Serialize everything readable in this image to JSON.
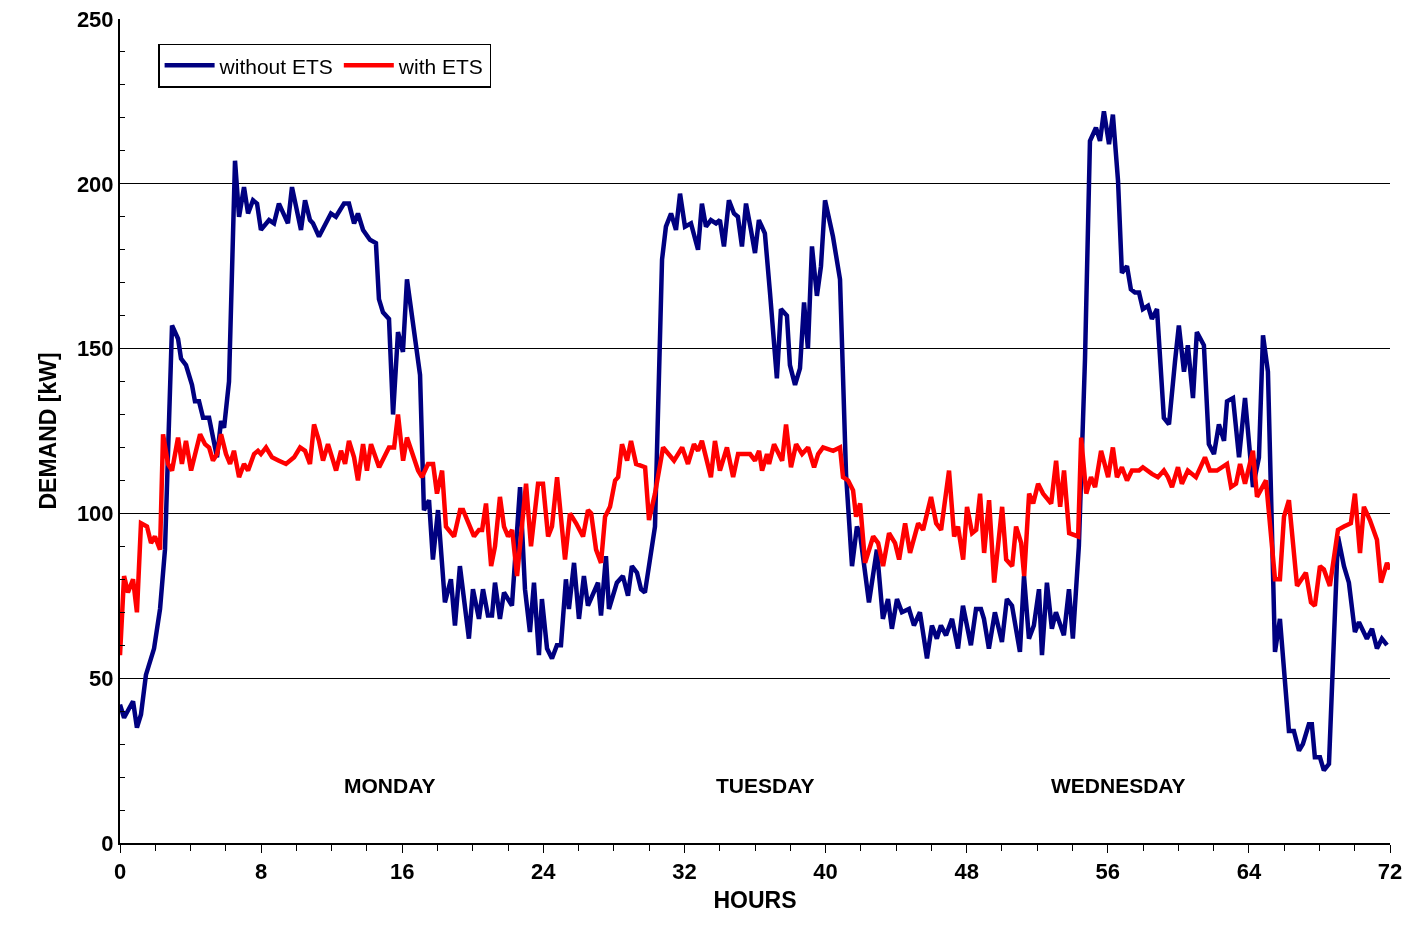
{
  "chart_data": {
    "type": "line",
    "xlabel": "HOURS",
    "ylabel": "DEMAND [kW]",
    "xlim": [
      0,
      72
    ],
    "xticks": [
      0,
      8,
      16,
      24,
      32,
      40,
      48,
      56,
      64,
      72
    ],
    "ylim": [
      0,
      250
    ],
    "yticks": [
      0,
      50,
      100,
      150,
      200,
      250
    ],
    "grid": "y",
    "legend": "top left",
    "marker": "none",
    "line_style": "solid",
    "annotations": [
      "MONDAY",
      "TUESDAY",
      "WEDNESDAY"
    ],
    "series": [
      {
        "name": "without ETS",
        "color": "#000080",
        "x": [
          0,
          0.23,
          0.74,
          0.96,
          1.19,
          1.47,
          1.93,
          2.27,
          2.55,
          2.95,
          3.29,
          3.46,
          3.74,
          4.08,
          4.25,
          4.48,
          4.71,
          5.05,
          5.5,
          5.73,
          5.9,
          6.18,
          6.52,
          6.75,
          7.03,
          7.26,
          7.54,
          7.77,
          7.99,
          8.45,
          8.73,
          9.01,
          9.52,
          9.75,
          10.26,
          10.49,
          10.77,
          10.94,
          11.28,
          11.96,
          12.24,
          12.7,
          12.98,
          13.27,
          13.49,
          13.78,
          14.17,
          14.51,
          14.68,
          14.91,
          15.25,
          15.48,
          15.76,
          16.04,
          16.27,
          17.01,
          17.23,
          17.52,
          17.74,
          18.03,
          18.42,
          18.76,
          18.99,
          19.27,
          19.78,
          20.01,
          20.35,
          20.58,
          20.86,
          21.09,
          21.26,
          21.54,
          21.77,
          22.22,
          22.68,
          22.96,
          23.24,
          23.47,
          23.75,
          23.92,
          24.21,
          24.49,
          24.77,
          25,
          25.28,
          25.45,
          25.74,
          26.02,
          26.3,
          26.53,
          27.1,
          27.27,
          27.55,
          27.72,
          28.17,
          28.51,
          28.8,
          29.02,
          29.31,
          29.54,
          29.76,
          30.33,
          30.73,
          30.95,
          31.24,
          31.52,
          31.75,
          32.03,
          32.37,
          32.77,
          32.99,
          33.22,
          33.5,
          33.79,
          34.01,
          34.24,
          34.52,
          34.81,
          35.03,
          35.26,
          35.49,
          35.77,
          36,
          36.22,
          36.56,
          36.85,
          37.24,
          37.47,
          37.81,
          37.98,
          38.27,
          38.55,
          38.78,
          39,
          39.23,
          39.51,
          39.74,
          39.97,
          40.42,
          40.82,
          41.16,
          41.5,
          41.78,
          41.95,
          42.46,
          42.91,
          43.25,
          43.54,
          43.76,
          44.05,
          44.33,
          44.73,
          45.01,
          45.35,
          45.75,
          46.03,
          46.31,
          46.54,
          46.83,
          47.17,
          47.51,
          47.79,
          48.24,
          48.53,
          48.81,
          48.98,
          49.26,
          49.6,
          50,
          50.28,
          50.57,
          51.02,
          51.25,
          51.53,
          51.81,
          52.1,
          52.27,
          52.55,
          52.83,
          53.06,
          53.51,
          53.8,
          54.02,
          54.36,
          54.71,
          54.99,
          55.33,
          55.56,
          55.78,
          56.07,
          56.29,
          56.58,
          56.8,
          57.09,
          57.31,
          57.54,
          57.77,
          57.99,
          58.28,
          58.5,
          58.79,
          59.18,
          59.47,
          59.81,
          60.03,
          60.32,
          60.54,
          60.83,
          61.05,
          61.45,
          61.73,
          62.02,
          62.3,
          62.59,
          62.76,
          63.1,
          63.44,
          63.78,
          64.23,
          64.57,
          64.8,
          65.08,
          65.48,
          65.76,
          66.27,
          66.55,
          66.84,
          67.06,
          67.4,
          67.57,
          67.74,
          68.03,
          68.25,
          68.54,
          69.05,
          69.39,
          69.67,
          70.01,
          70.24,
          70.69,
          70.98,
          71.26,
          71.54,
          71.83
        ],
        "values": [
          42,
          38,
          43,
          35,
          39,
          51,
          59,
          71,
          89,
          157,
          153,
          147,
          145,
          139,
          134,
          134,
          129,
          129,
          117,
          128,
          126,
          140,
          207,
          190,
          199,
          191,
          195,
          194,
          186,
          189,
          188,
          194,
          188,
          199,
          186,
          195,
          189,
          188,
          184,
          191,
          190,
          194,
          194,
          188,
          191,
          186,
          183,
          182,
          165,
          161,
          159,
          130,
          155,
          149,
          171,
          142,
          101,
          104,
          86,
          101,
          73,
          80,
          66,
          84,
          62,
          77,
          68,
          77,
          69,
          69,
          79,
          68,
          76,
          72,
          108,
          77,
          64,
          79,
          57,
          74,
          59,
          56,
          60,
          60,
          80,
          71,
          85,
          68,
          81,
          72,
          79,
          69,
          87,
          71,
          79,
          81,
          75,
          84,
          82,
          77,
          76,
          96,
          177,
          187,
          191,
          186,
          197,
          187,
          188,
          180,
          194,
          187,
          189,
          188,
          189,
          181,
          195,
          191,
          190,
          181,
          194,
          186,
          179,
          189,
          185,
          167,
          141,
          162,
          160,
          145,
          139,
          144,
          164,
          150,
          181,
          166,
          175,
          195,
          184,
          171,
          112,
          84,
          96,
          94,
          73,
          89,
          68,
          74,
          65,
          74,
          70,
          71,
          66,
          70,
          56,
          66,
          62,
          66,
          63,
          68,
          59,
          72,
          60,
          71,
          71,
          68,
          59,
          70,
          61,
          74,
          72,
          58,
          81,
          62,
          66,
          77,
          57,
          79,
          65,
          70,
          63,
          77,
          62,
          90,
          147,
          213,
          217,
          213,
          222,
          212,
          221,
          201,
          173,
          175,
          168,
          167,
          167,
          162,
          163,
          159,
          162,
          129,
          127,
          146,
          157,
          143,
          151,
          135,
          155,
          151,
          121,
          118,
          127,
          122,
          134,
          135,
          117,
          135,
          108,
          117,
          154,
          143,
          58,
          68,
          34,
          34,
          28,
          30,
          36,
          36,
          26,
          26,
          22,
          24,
          93,
          84,
          79,
          64,
          67,
          62,
          65,
          59,
          62,
          60
        ]
      },
      {
        "name": "with ETS",
        "color": "#ff0000",
        "x": [
          0,
          0.23,
          0.45,
          0.74,
          0.96,
          1.19,
          1.53,
          1.76,
          1.98,
          2.27,
          2.44,
          2.72,
          2.95,
          3.29,
          3.51,
          3.74,
          4.03,
          4.54,
          4.82,
          5.05,
          5.27,
          5.5,
          5.73,
          6.01,
          6.24,
          6.46,
          6.75,
          7.03,
          7.26,
          7.6,
          7.82,
          7.99,
          8.28,
          8.62,
          9.01,
          9.41,
          9.87,
          10.21,
          10.49,
          10.77,
          11,
          11.28,
          11.51,
          11.79,
          12.08,
          12.25,
          12.53,
          12.76,
          12.98,
          13.27,
          13.49,
          13.78,
          14,
          14.23,
          14.69,
          15.25,
          15.54,
          15.76,
          16.05,
          16.27,
          16.9,
          17.12,
          17.46,
          17.75,
          17.97,
          18.26,
          18.48,
          18.94,
          19.28,
          19.45,
          20.07,
          20.35,
          20.53,
          20.75,
          21.04,
          21.26,
          21.54,
          21.77,
          22,
          22.23,
          22.51,
          23.02,
          23.3,
          23.7,
          23.98,
          24.27,
          24.49,
          24.78,
          25.23,
          25.51,
          25.86,
          26.25,
          26.53,
          26.71,
          26.99,
          27.27,
          27.5,
          27.78,
          28.07,
          28.24,
          28.46,
          28.75,
          28.97,
          29.26,
          29.77,
          29.99,
          30.33,
          30.79,
          31.41,
          31.87,
          32.2,
          32.54,
          32.77,
          32.99,
          33.5,
          33.73,
          34.01,
          34.41,
          34.76,
          35.04,
          35.72,
          36,
          36.23,
          36.4,
          36.68,
          36.8,
          37.08,
          37.54,
          37.76,
          38.04,
          38.33,
          38.67,
          39.01,
          39.35,
          39.58,
          39.86,
          40.43,
          40.82,
          40.99,
          41.28,
          41.56,
          41.73,
          41.96,
          42.24,
          42.7,
          42.98,
          43.26,
          43.6,
          43.94,
          44.17,
          44.51,
          44.79,
          45.25,
          45.53,
          45.98,
          46.27,
          46.55,
          47,
          47.29,
          47.51,
          47.8,
          48.02,
          48.31,
          48.54,
          48.76,
          48.99,
          49.27,
          49.56,
          50.01,
          50.24,
          50.58,
          50.8,
          51.09,
          51.26,
          51.54,
          51.77,
          52.05,
          52.33,
          52.79,
          53.07,
          53.3,
          53.52,
          53.81,
          54.32,
          54.49,
          54.78,
          55.05,
          55.28,
          55.62,
          56.02,
          56.29,
          56.52,
          56.8,
          57.09,
          57.37,
          57.77,
          57.99,
          58.5,
          58.84,
          59.18,
          59.41,
          59.64,
          59.98,
          60.2,
          60.54,
          61,
          61.51,
          61.79,
          62.19,
          62.76,
          62.99,
          63.27,
          63.5,
          63.78,
          64.23,
          64.46,
          64.97,
          65.48,
          65.76,
          65.99,
          66.27,
          66.73,
          67.23,
          67.52,
          67.74,
          68.03,
          68.25,
          68.59,
          69.05,
          69.39,
          69.78,
          70.01,
          70.3,
          70.52,
          70.86,
          71.26,
          71.49,
          71.83,
          72
        ],
        "values": [
          57,
          81,
          76,
          80,
          70,
          97,
          96,
          91,
          93,
          89,
          124,
          115,
          113,
          123,
          115,
          122,
          113,
          124,
          121,
          120,
          116,
          118,
          124,
          118,
          115,
          119,
          111,
          115,
          113,
          118,
          119,
          118,
          120,
          117,
          116,
          115,
          117,
          120,
          119,
          115,
          127,
          122,
          116,
          121,
          116,
          113,
          119,
          115,
          122,
          117,
          110,
          121,
          113,
          121,
          114,
          120,
          120,
          130,
          116,
          123,
          113,
          111,
          115,
          115,
          106,
          113,
          96,
          93,
          101,
          101,
          93,
          95,
          95,
          103,
          84,
          90,
          105,
          96,
          93,
          95,
          81,
          109,
          90,
          109,
          109,
          93,
          96,
          111,
          86,
          100,
          97,
          93,
          101,
          100,
          89,
          85,
          99,
          102,
          110,
          111,
          121,
          116,
          122,
          115,
          114,
          98,
          106,
          120,
          116,
          120,
          115,
          121,
          119,
          122,
          111,
          122,
          113,
          120,
          111,
          118,
          118,
          116,
          119,
          113,
          118,
          115,
          121,
          116,
          127,
          114,
          121,
          118,
          120,
          114,
          118,
          120,
          119,
          120,
          111,
          110,
          107,
          99,
          103,
          85,
          93,
          91,
          84,
          94,
          91,
          86,
          97,
          88,
          97,
          95,
          105,
          97,
          95,
          113,
          93,
          96,
          86,
          102,
          94,
          95,
          106,
          88,
          104,
          79,
          102,
          86,
          84,
          96,
          91,
          81,
          106,
          103,
          109,
          106,
          103,
          116,
          102,
          113,
          94,
          93,
          123,
          106,
          111,
          108,
          119,
          111,
          120,
          111,
          114,
          110,
          113,
          113,
          114,
          112,
          111,
          113,
          111,
          108,
          114,
          109,
          113,
          111,
          117,
          113,
          113,
          115,
          108,
          109,
          115,
          109,
          119,
          105,
          110,
          80,
          80,
          99,
          104,
          78,
          82,
          73,
          72,
          84,
          83,
          78,
          95,
          96,
          97,
          106,
          88,
          102,
          98,
          92,
          79,
          85,
          83
        ]
      }
    ]
  }
}
